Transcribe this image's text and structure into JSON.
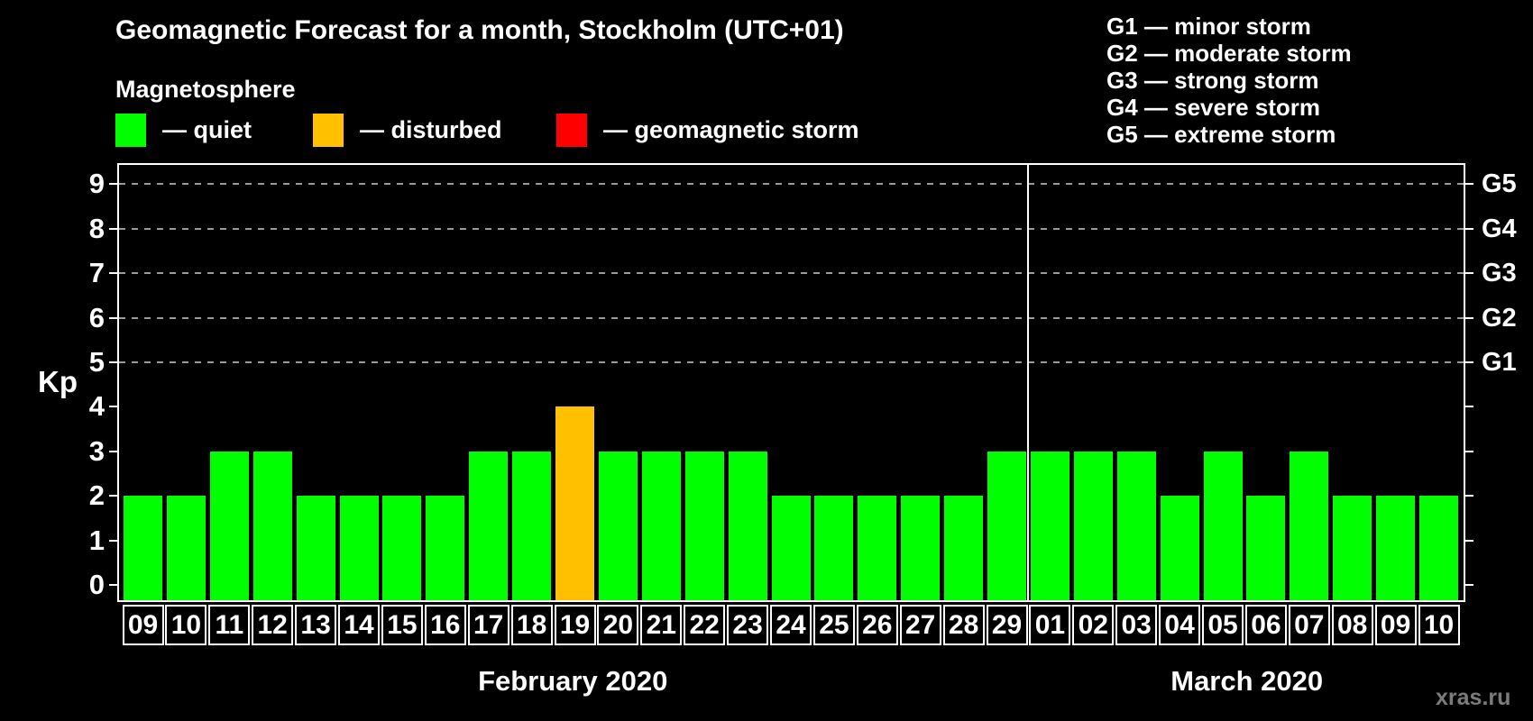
{
  "title": "Geomagnetic Forecast for a month, Stockholm (UTC+01)",
  "legend": {
    "heading": "Magnetosphere",
    "items": [
      {
        "name": "quiet",
        "label": "— quiet",
        "color": "#00ff00"
      },
      {
        "name": "disturbed",
        "label": "— disturbed",
        "color": "#ffc000"
      },
      {
        "name": "storm",
        "label": "— geomagnetic storm",
        "color": "#ff0000"
      }
    ]
  },
  "g_legend": [
    "G1 — minor storm",
    "G2 — moderate storm",
    "G3 — strong storm",
    "G4 — severe storm",
    "G5 — extreme storm"
  ],
  "watermark": "xras.ru",
  "chart_data": {
    "type": "bar",
    "title": "Geomagnetic Forecast for a month, Stockholm (UTC+01)",
    "ylabel": "Kp",
    "ylim": [
      0,
      9
    ],
    "yticks": [
      0,
      1,
      2,
      3,
      4,
      5,
      6,
      7,
      8,
      9
    ],
    "grid": "horizontal dashed lines at Kp 5-9 only",
    "legend_position": "top-left",
    "dashed_gridlines_kp": [
      5,
      6,
      7,
      8,
      9
    ],
    "right_axis": [
      {
        "label": "G1",
        "kp": 5
      },
      {
        "label": "G2",
        "kp": 6
      },
      {
        "label": "G3",
        "kp": 7
      },
      {
        "label": "G4",
        "kp": 8
      },
      {
        "label": "G5",
        "kp": 9
      }
    ],
    "status_colors": {
      "quiet": "#00ff00",
      "disturbed": "#ffc000",
      "storm": "#ff0000"
    },
    "months": [
      {
        "label": "February 2020",
        "days": [
          {
            "day": "09",
            "kp": 2,
            "status": "quiet"
          },
          {
            "day": "10",
            "kp": 2,
            "status": "quiet"
          },
          {
            "day": "11",
            "kp": 3,
            "status": "quiet"
          },
          {
            "day": "12",
            "kp": 3,
            "status": "quiet"
          },
          {
            "day": "13",
            "kp": 2,
            "status": "quiet"
          },
          {
            "day": "14",
            "kp": 2,
            "status": "quiet"
          },
          {
            "day": "15",
            "kp": 2,
            "status": "quiet"
          },
          {
            "day": "16",
            "kp": 2,
            "status": "quiet"
          },
          {
            "day": "17",
            "kp": 3,
            "status": "quiet"
          },
          {
            "day": "18",
            "kp": 3,
            "status": "quiet"
          },
          {
            "day": "19",
            "kp": 4,
            "status": "disturbed"
          },
          {
            "day": "20",
            "kp": 3,
            "status": "quiet"
          },
          {
            "day": "21",
            "kp": 3,
            "status": "quiet"
          },
          {
            "day": "22",
            "kp": 3,
            "status": "quiet"
          },
          {
            "day": "23",
            "kp": 3,
            "status": "quiet"
          },
          {
            "day": "24",
            "kp": 2,
            "status": "quiet"
          },
          {
            "day": "25",
            "kp": 2,
            "status": "quiet"
          },
          {
            "day": "26",
            "kp": 2,
            "status": "quiet"
          },
          {
            "day": "27",
            "kp": 2,
            "status": "quiet"
          },
          {
            "day": "28",
            "kp": 2,
            "status": "quiet"
          },
          {
            "day": "29",
            "kp": 3,
            "status": "quiet"
          }
        ]
      },
      {
        "label": "March 2020",
        "days": [
          {
            "day": "01",
            "kp": 3,
            "status": "quiet"
          },
          {
            "day": "02",
            "kp": 3,
            "status": "quiet"
          },
          {
            "day": "03",
            "kp": 3,
            "status": "quiet"
          },
          {
            "day": "04",
            "kp": 2,
            "status": "quiet"
          },
          {
            "day": "05",
            "kp": 3,
            "status": "quiet"
          },
          {
            "day": "06",
            "kp": 2,
            "status": "quiet"
          },
          {
            "day": "07",
            "kp": 3,
            "status": "quiet"
          },
          {
            "day": "08",
            "kp": 2,
            "status": "quiet"
          },
          {
            "day": "09",
            "kp": 2,
            "status": "quiet"
          },
          {
            "day": "10",
            "kp": 2,
            "status": "quiet"
          }
        ]
      }
    ]
  }
}
